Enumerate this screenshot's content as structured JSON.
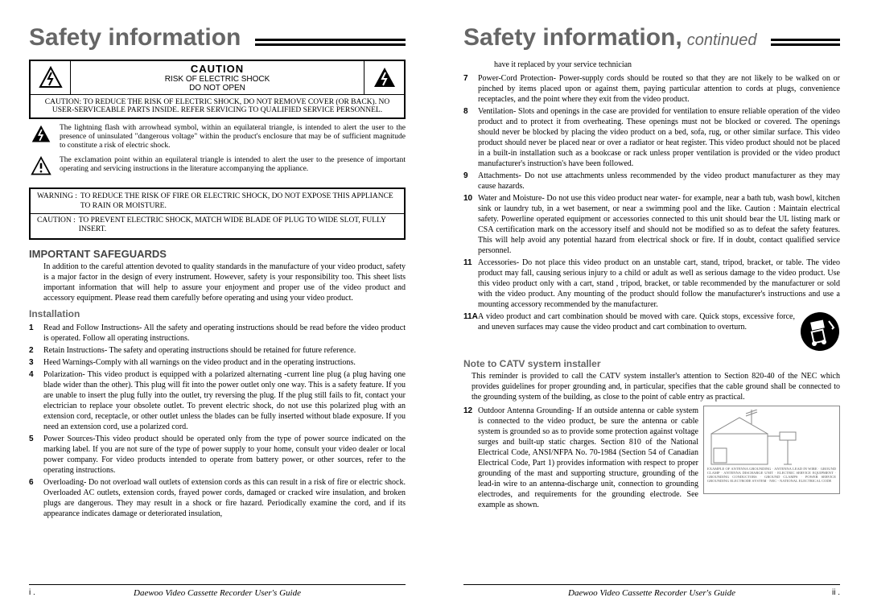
{
  "left": {
    "title": "Safety information",
    "caution": {
      "head": "CAUTION",
      "risk": "RISK OF ELECTRIC SHOCK",
      "donotopen": "DO NOT OPEN",
      "text": "CAUTION: TO REDUCE THE RISK OF ELECTRIC SHOCK, DO NOT REMOVE COVER (OR BACK). NO USER-SERVICEABLE PARTS INSIDE. REFER SERVICING TO QUALIFIED SERVICE PERSONNEL."
    },
    "bolt_text": "The lightning flash with arrowhead symbol, within an equilateral triangle, is intended to alert the user to the presence of uninsulated \"dangerous voltage\" within the product's enclosure that may be of sufficient magnitude to constitute a risk of electric shock.",
    "excl_text": "The exclamation point within an equilateral triangle is intended to alert the user to the presence of important operating and servicing instructions in the literature accompanying the appliance.",
    "warning_label": "WARNING :",
    "warning": "TO REDUCE THE RISK OF FIRE OR ELECTRIC SHOCK, DO NOT EXPOSE THIS APPLIANCE TO RAIN OR MOISTURE.",
    "caution2_label": "CAUTION :",
    "caution2": "TO PREVENT ELECTRIC SHOCK, MATCH WIDE BLADE OF PLUG TO WIDE SLOT, FULLY INSERT.",
    "safeguards_head": "IMPORTANT SAFEGUARDS",
    "safeguards_body": "In addition to the careful attention devoted to quality standards in the manufacture of your video product, safety is a major factor in the design of every instrument. However, safety is your responsibility too. This sheet lists important information that will help to assure your enjoyment and proper use of the video product and accessory equipment. Please read them carefully before operating and using your video product.",
    "install_head": "Installation",
    "items": [
      {
        "n": "1",
        "t": "Read and Follow Instructions- All the safety and operating instructions should be read before the video product is operated. Follow all operating instructions."
      },
      {
        "n": "2",
        "t": "Retain Instructions- The safety and operating instructions should be retained for future reference."
      },
      {
        "n": "3",
        "t": "Heed Warnings-Comply with all warnings on the video product and in the operating instructions."
      },
      {
        "n": "4",
        "t": "Polarization- This video product is equipped with a polarized alternating -current line plug (a plug having one blade wider than the other). This plug will fit into the power outlet only one way. This is a safety feature. If you are unable to insert the plug fully into the outlet, try reversing the plug. If the plug still fails to fit, contact your electrician to replace your obsolete outlet. To prevent electric shock, do not use this polarized plug with an extension cord, receptacle, or other outlet unless the blades can be fully inserted without blade exposure. If you need an extension cord, use a polarized cord."
      },
      {
        "n": "5",
        "t": "Power Sources-This video product should be operated only from the type of power source indicated on the marking label. If you are not sure of the type of power supply to your home, consult your video dealer or local power company. For video products intended to operate from battery power, or other sources, refer to the operating instructions."
      },
      {
        "n": "6",
        "t": "Overloading- Do not overload wall outlets of extension cords as this can result in a risk of fire or electric shock. Overloaded AC outlets, extension cords, frayed power cords, damaged or cracked wire insulation, and broken plugs are dangerous. They may result in a shock or fire hazard. Periodically examine the cord, and if its appearance indicates damage or deteriorated insulation,"
      }
    ],
    "footer_guide": "Daewoo Video Cassette Recorder User's Guide",
    "footer_page": "i ."
  },
  "right": {
    "title": "Safety information,",
    "continued": "continued",
    "cont6": "have it replaced by your service technician",
    "items": [
      {
        "n": "7",
        "t": "Power-Cord Protection- Power-supply cords should be routed so that they are not likely to be walked on or pinched by items placed upon or against them, paying particular attention to cords at plugs, convenience receptacles, and the point where they exit from the video product."
      },
      {
        "n": "8",
        "t": "Ventilation- Slots and openings in the case are provided for ventilation to ensure reliable operation of the video product and to protect it from overheating. These openings must not be blocked or covered. The openings should never be blocked by placing the video product on a bed, sofa, rug, or other similar surface. This video product should never be placed near or over a radiator or heat register. This video product should not be placed in a built-in installation such as a bookcase or rack unless proper ventilation is provided or the video product manufacturer's instruction's have been followed."
      },
      {
        "n": "9",
        "t": "Attachments- Do not use attachments unless recommended by the video product manufacturer as they may cause hazards."
      },
      {
        "n": "10",
        "t": "Water and Moisture- Do not use this video product near water- for example, near a bath tub, wash bowl, kitchen sink or laundry tub, in a wet basement, or near a swimming pool and the like. Caution : Maintain electrical safety. Powerline operated equipment or accessories connected to this unit should bear the UL listing mark or CSA certification mark on the accessory itself and should not be modified so as to defeat the safety features. This will help avoid any potential hazard from electrical shock or fire. If in doubt, contact qualified service personnel."
      },
      {
        "n": "11",
        "t": "Accessories- Do not place this video product on an unstable cart, stand, tripod, bracket, or table. The video product may fall, causing serious injury to a child or adult as well as serious damage to the video product. Use this video product only with a cart, stand , tripod, bracket, or table recommended by the manufacturer or sold with the video product. Any mounting of the product should follow the manufacturer's instructions and use a mounting accessory recommended by the manufacturer."
      },
      {
        "n": "11A",
        "t": "A video product and cart combination should be moved with care. Quick stops, excessive force, and uneven surfaces may cause the video product and cart combination to overturn."
      }
    ],
    "catv_head": "Note to CATV system installer",
    "catv_body": "This reminder is provided to call the CATV system installer's attention to Section 820-40 of the NEC which provides guidelines for proper grounding and, in particular, specifies that the cable ground shall be connected to the grounding system of the building, as close to the point of cable entry as practical.",
    "item12": {
      "n": "12",
      "t": "Outdoor Antenna Grounding- If an outside antenna or cable system is connected to the video product, be sure the antenna or cable system is grounded so as to provide some protection against voltage surges and built-up static charges. Section 810 of the National Electrical Code, ANSI/NFPA No. 70-1984 (Section 54 of Canadian Electrical Code, Part 1) provides information with respect to proper grounding of the mast and supporting structure, grounding of the lead-in wire to an antenna-discharge unit, connection to grounding electrodes, and requirements for the grounding electrode. See example as shown."
    },
    "diagram_labels": "EXAMPLE OF ANTENNA GROUNDING · ANTENNA LEAD IN WIRE · GROUND CLAMP · ANTENNA DISCHARGE UNIT · ELECTRIC SERVICE EQUIPMENT · GROUNDING CONDUCTORS · GROUND CLAMPS · POWER SERVICE GROUNDING ELECTRODE SYSTEM · NEC - NATIONAL ELECTRICAL CODE",
    "footer_guide": "Daewoo Video Cassette Recorder User's Guide",
    "footer_page": "ii ."
  }
}
